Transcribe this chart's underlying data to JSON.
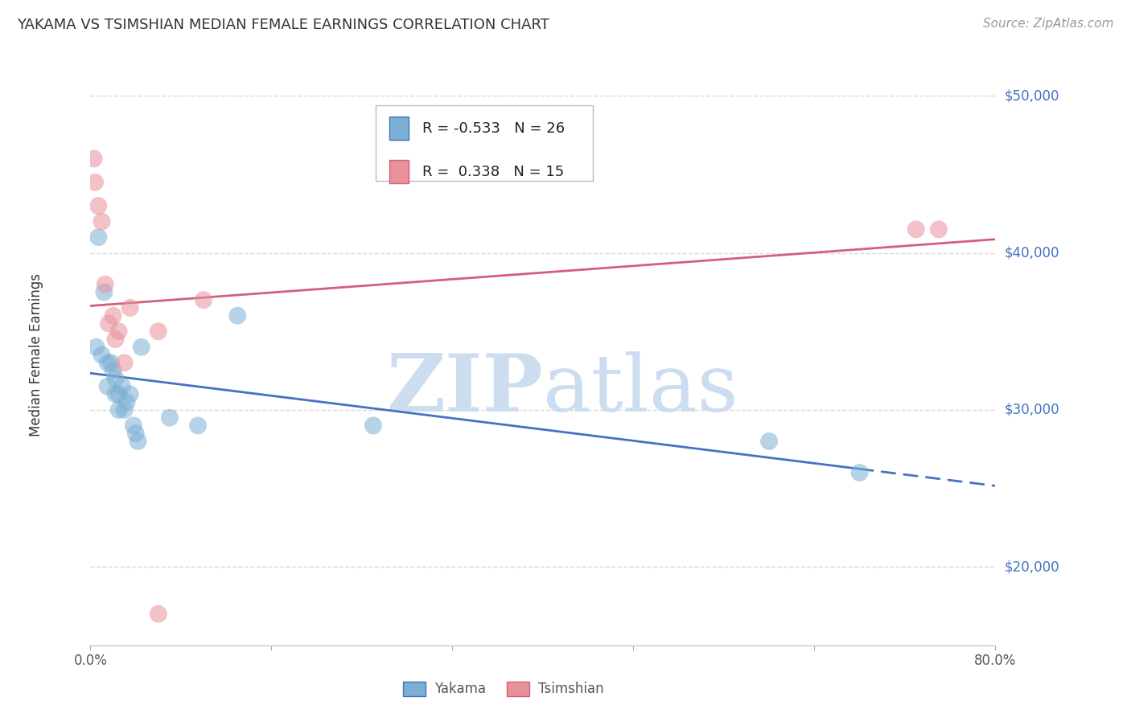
{
  "title": "YAKAMA VS TSIMSHIAN MEDIAN FEMALE EARNINGS CORRELATION CHART",
  "source": "Source: ZipAtlas.com",
  "ylabel": "Median Female Earnings",
  "yakama_color": "#7bafd4",
  "tsimshian_color": "#e8919b",
  "yakama_line_color": "#4472c4",
  "tsimshian_line_color": "#d45f7a",
  "axis_label_color": "#4472c4",
  "watermark_color": "#ccddf0",
  "legend_r_yakama": "R = -0.533",
  "legend_n_yakama": "N = 26",
  "legend_r_tsimshian": "R =  0.338",
  "legend_n_tsimshian": "N = 15",
  "yakama_x": [
    0.005,
    0.007,
    0.01,
    0.012,
    0.015,
    0.015,
    0.018,
    0.02,
    0.022,
    0.022,
    0.025,
    0.025,
    0.028,
    0.03,
    0.032,
    0.035,
    0.038,
    0.04,
    0.042,
    0.045,
    0.07,
    0.095,
    0.13,
    0.25,
    0.6,
    0.68
  ],
  "yakama_y": [
    34000,
    41000,
    33500,
    37500,
    33000,
    31500,
    33000,
    32500,
    32000,
    31000,
    31000,
    30000,
    31500,
    30000,
    30500,
    31000,
    29000,
    28500,
    28000,
    34000,
    29500,
    29000,
    36000,
    29000,
    28000,
    26000
  ],
  "tsimshian_x": [
    0.003,
    0.004,
    0.007,
    0.01,
    0.013,
    0.016,
    0.02,
    0.022,
    0.025,
    0.03,
    0.035,
    0.06,
    0.1,
    0.73,
    0.75
  ],
  "tsimshian_y": [
    46000,
    44500,
    43000,
    42000,
    38000,
    35500,
    36000,
    34500,
    35000,
    33000,
    36500,
    35000,
    37000,
    41500,
    41500
  ],
  "tsimshian_outlier_x": [
    0.06
  ],
  "tsimshian_outlier_y": [
    17000
  ],
  "xmin": 0.0,
  "xmax": 0.8,
  "ymin": 15000,
  "ymax": 52000,
  "ytick_vals": [
    20000,
    30000,
    40000,
    50000
  ],
  "ytick_labels": [
    "$20,000",
    "$30,000",
    "$40,000",
    "$50,000"
  ],
  "xticks": [
    0.0,
    0.16,
    0.32,
    0.48,
    0.64,
    0.8
  ],
  "xtick_labels": [
    "0.0%",
    "",
    "",
    "",
    "",
    "80.0%"
  ],
  "grid_color": "#d8d8d8",
  "plot_border_color": "#cccccc"
}
